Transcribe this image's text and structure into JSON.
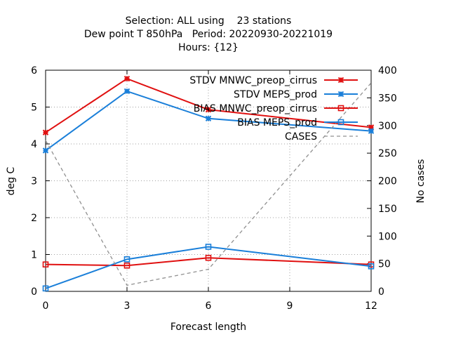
{
  "chart_data": {
    "type": "line",
    "title_lines": [
      "Selection: ALL using    23 stations",
      "Dew point T 850hPa   Period: 20220930-20221019",
      "Hours: {12}"
    ],
    "xlabel": "Forecast length",
    "ylabel": "deg C",
    "y2label": "No cases",
    "x": [
      0,
      3,
      6,
      9,
      12
    ],
    "xticks": [
      "0",
      "3",
      "6",
      "9",
      "12"
    ],
    "xlim": [
      0,
      12
    ],
    "ylim": [
      0,
      6
    ],
    "yticks": [
      "0",
      "1",
      "2",
      "3",
      "4",
      "5",
      "6"
    ],
    "y2lim": [
      0,
      400
    ],
    "y2ticks": [
      "0",
      "50",
      "100",
      "150",
      "200",
      "250",
      "300",
      "350",
      "400"
    ],
    "grid": true,
    "legend_position": "top-right",
    "series": [
      {
        "name": "STDV MNWC_preop_cirrus",
        "axis": "y",
        "color": "#e01010",
        "marker": "x",
        "dash": false,
        "x": [
          0,
          3,
          6,
          12
        ],
        "values": [
          4.31,
          5.77,
          4.93,
          4.45
        ]
      },
      {
        "name": "STDV MEPS_prod",
        "axis": "y",
        "color": "#1a7fd9",
        "marker": "x",
        "dash": false,
        "x": [
          0,
          3,
          6,
          12
        ],
        "values": [
          3.82,
          5.43,
          4.69,
          4.35
        ]
      },
      {
        "name": "BIAS MNWC_preop_cirrus",
        "axis": "y",
        "color": "#e01010",
        "marker": "square",
        "dash": false,
        "x": [
          0,
          3,
          6,
          12
        ],
        "values": [
          0.73,
          0.7,
          0.91,
          0.73
        ]
      },
      {
        "name": "BIAS MEPS_prod",
        "axis": "y",
        "color": "#1a7fd9",
        "marker": "square",
        "dash": false,
        "x": [
          0,
          3,
          6,
          12
        ],
        "values": [
          0.08,
          0.87,
          1.21,
          0.68
        ]
      },
      {
        "name": "CASES",
        "axis": "y2",
        "color": "#909090",
        "marker": "none",
        "dash": true,
        "x": [
          0,
          3,
          6,
          12
        ],
        "values": [
          273,
          11,
          40,
          377
        ]
      }
    ]
  }
}
